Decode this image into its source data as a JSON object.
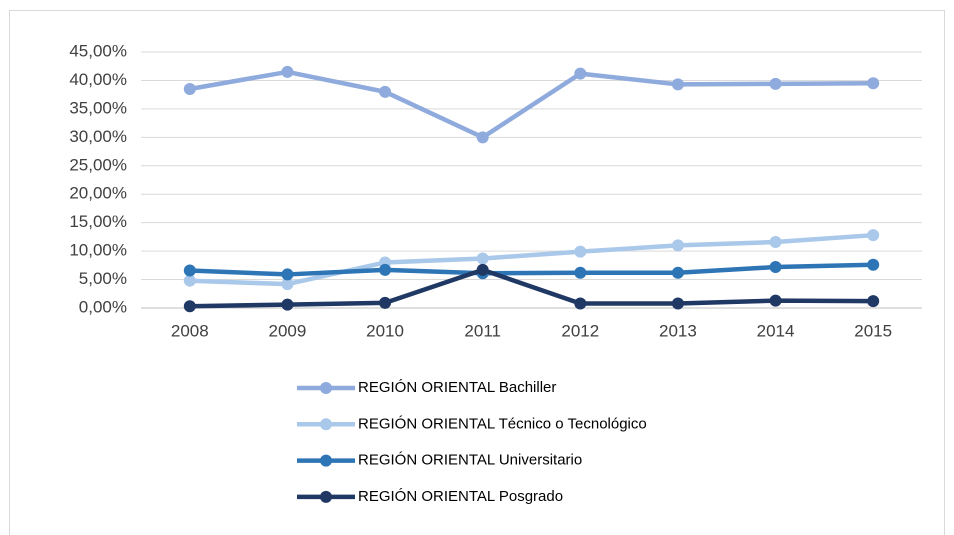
{
  "chart_data": {
    "type": "line",
    "categories": [
      "2008",
      "2009",
      "2010",
      "2011",
      "2012",
      "2013",
      "2014",
      "2015"
    ],
    "series": [
      {
        "name": "REGIÓN ORIENTAL Bachiller",
        "color": "#8faadc",
        "values": [
          38.5,
          41.5,
          38.0,
          30.0,
          41.2,
          39.3,
          39.4,
          39.5
        ]
      },
      {
        "name": "REGIÓN ORIENTAL Técnico o Tecnológico",
        "color": "#a9c8ea",
        "values": [
          4.8,
          4.2,
          8.0,
          8.7,
          9.9,
          11.0,
          11.6,
          12.8
        ]
      },
      {
        "name": "REGIÓN ORIENTAL Universitario",
        "color": "#2e75b6",
        "values": [
          6.6,
          5.9,
          6.7,
          6.1,
          6.2,
          6.2,
          7.2,
          7.6
        ]
      },
      {
        "name": "REGIÓN ORIENTAL Posgrado",
        "color": "#203864",
        "values": [
          0.3,
          0.6,
          0.9,
          6.7,
          0.8,
          0.8,
          1.3,
          1.2
        ]
      }
    ],
    "ylim": [
      0,
      45
    ],
    "yticks": [
      {
        "value": 0,
        "label": "0,00%"
      },
      {
        "value": 5,
        "label": "5,00%"
      },
      {
        "value": 10,
        "label": "10,00%"
      },
      {
        "value": 15,
        "label": "15,00%"
      },
      {
        "value": 20,
        "label": "20,00%"
      },
      {
        "value": 25,
        "label": "25,00%"
      },
      {
        "value": 30,
        "label": "30,00%"
      },
      {
        "value": 35,
        "label": "35,00%"
      },
      {
        "value": 40,
        "label": "40,00%"
      },
      {
        "value": 45,
        "label": "45,00%"
      }
    ],
    "grid": true,
    "legend": "bottom"
  }
}
